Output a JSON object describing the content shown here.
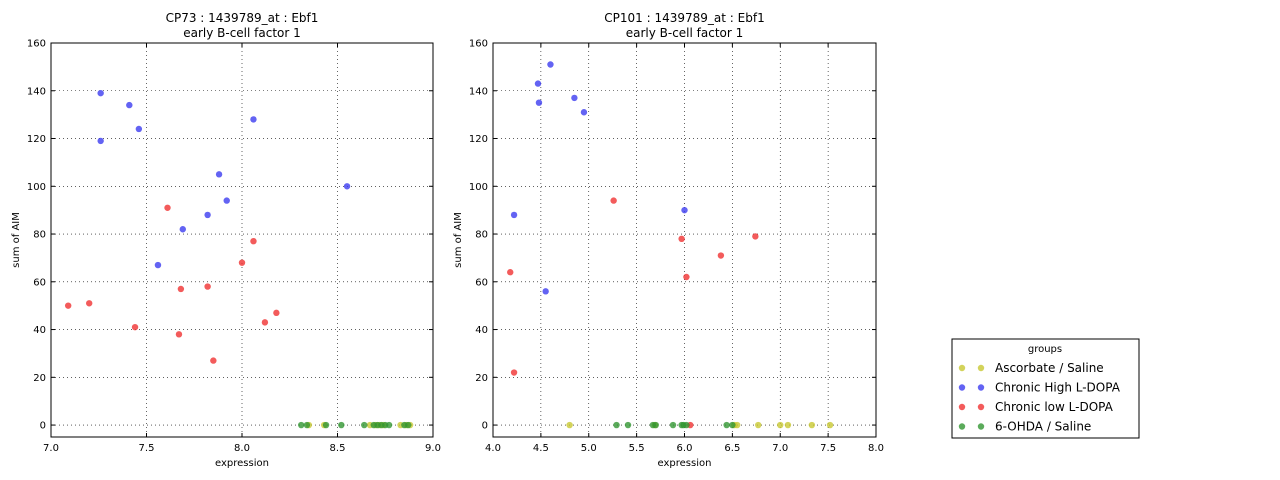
{
  "figure": {
    "colors": {
      "Ascorbate / Saline": "#c8c832",
      "Chronic High L-DOPA": "#3c3cf0",
      "Chronic low L-DOPA": "#f03232",
      "6-OHDA / Saline": "#329632"
    }
  },
  "legend": {
    "title": "groups",
    "placement": "lower-right (outside axes)",
    "entries": [
      "Ascorbate / Saline",
      "Chronic High L-DOPA",
      "Chronic low L-DOPA",
      "6-OHDA / Saline"
    ]
  },
  "chart_data": [
    {
      "type": "scatter",
      "title": "CP73 : 1439789_at : Ebf1",
      "subtitle": "early B-cell factor 1",
      "xlabel": "expression",
      "ylabel": "sum of AIM",
      "xlim": [
        7.0,
        9.0
      ],
      "ylim": [
        -5,
        160
      ],
      "xticks": [
        7.0,
        7.5,
        8.0,
        8.5,
        9.0
      ],
      "xtick_labels": [
        "7.0",
        "7.5",
        "8.0",
        "8.5",
        "9.0"
      ],
      "yticks": [
        0,
        20,
        40,
        60,
        80,
        100,
        120,
        140,
        160
      ],
      "ytick_labels": [
        "0",
        "20",
        "40",
        "60",
        "80",
        "100",
        "120",
        "140",
        "160"
      ],
      "grid": true,
      "series": [
        {
          "name": "Ascorbate / Saline",
          "x": [
            8.35,
            8.43,
            8.67,
            8.7,
            8.72,
            8.74,
            8.83,
            8.86,
            8.88
          ],
          "y": [
            0,
            0,
            0,
            0,
            0,
            0,
            0,
            0,
            0
          ]
        },
        {
          "name": "Chronic High L-DOPA",
          "x": [
            7.26,
            7.41,
            7.46,
            7.26,
            8.06,
            7.88,
            7.92,
            7.82,
            7.69,
            7.56,
            8.55
          ],
          "y": [
            139,
            134,
            124,
            119,
            128,
            105,
            94,
            88,
            82,
            67,
            100
          ]
        },
        {
          "name": "Chronic low L-DOPA",
          "x": [
            7.61,
            8.06,
            8.0,
            7.09,
            7.2,
            7.68,
            7.82,
            8.18,
            8.12,
            7.44,
            7.67,
            7.85
          ],
          "y": [
            91,
            77,
            68,
            50,
            51,
            57,
            58,
            47,
            43,
            41,
            38,
            27
          ]
        },
        {
          "name": "6-OHDA / Saline",
          "x": [
            8.31,
            8.34,
            8.44,
            8.52,
            8.64,
            8.69,
            8.71,
            8.73,
            8.75,
            8.77,
            8.85,
            8.87
          ],
          "y": [
            0,
            0,
            0,
            0,
            0,
            0,
            0,
            0,
            0,
            0,
            0,
            0
          ]
        }
      ]
    },
    {
      "type": "scatter",
      "title": "CP101 : 1439789_at : Ebf1",
      "subtitle": "early B-cell factor 1",
      "xlabel": "expression",
      "ylabel": "sum of AIM",
      "xlim": [
        4.0,
        8.0
      ],
      "ylim": [
        -5,
        160
      ],
      "xticks": [
        4.0,
        4.5,
        5.0,
        5.5,
        6.0,
        6.5,
        7.0,
        7.5,
        8.0
      ],
      "xtick_labels": [
        "4.0",
        "4.5",
        "5.0",
        "5.5",
        "6.0",
        "6.5",
        "7.0",
        "7.5",
        "8.0"
      ],
      "yticks": [
        0,
        20,
        40,
        60,
        80,
        100,
        120,
        140,
        160
      ],
      "ytick_labels": [
        "0",
        "20",
        "40",
        "60",
        "80",
        "100",
        "120",
        "140",
        "160"
      ],
      "grid": true,
      "series": [
        {
          "name": "Ascorbate / Saline",
          "x": [
            4.8,
            5.69,
            6.52,
            6.55,
            6.77,
            7.0,
            7.08,
            7.33,
            7.52
          ],
          "y": [
            0,
            0,
            0,
            0,
            0,
            0,
            0,
            0,
            0
          ]
        },
        {
          "name": "Chronic High L-DOPA",
          "x": [
            4.6,
            4.47,
            4.48,
            4.85,
            4.95,
            4.22,
            6.0,
            4.55
          ],
          "y": [
            151,
            143,
            135,
            137,
            131,
            88,
            90,
            56
          ]
        },
        {
          "name": "Chronic low L-DOPA",
          "x": [
            5.26,
            5.97,
            6.74,
            6.38,
            6.02,
            4.18,
            4.22,
            6.06
          ],
          "y": [
            94,
            78,
            79,
            71,
            62,
            64,
            22,
            0
          ]
        },
        {
          "name": "6-OHDA / Saline",
          "x": [
            5.29,
            5.41,
            5.67,
            5.7,
            5.88,
            5.97,
            5.99,
            6.02,
            6.44,
            6.5
          ],
          "y": [
            0,
            0,
            0,
            0,
            0,
            0,
            0,
            0,
            0,
            0
          ]
        }
      ]
    }
  ]
}
